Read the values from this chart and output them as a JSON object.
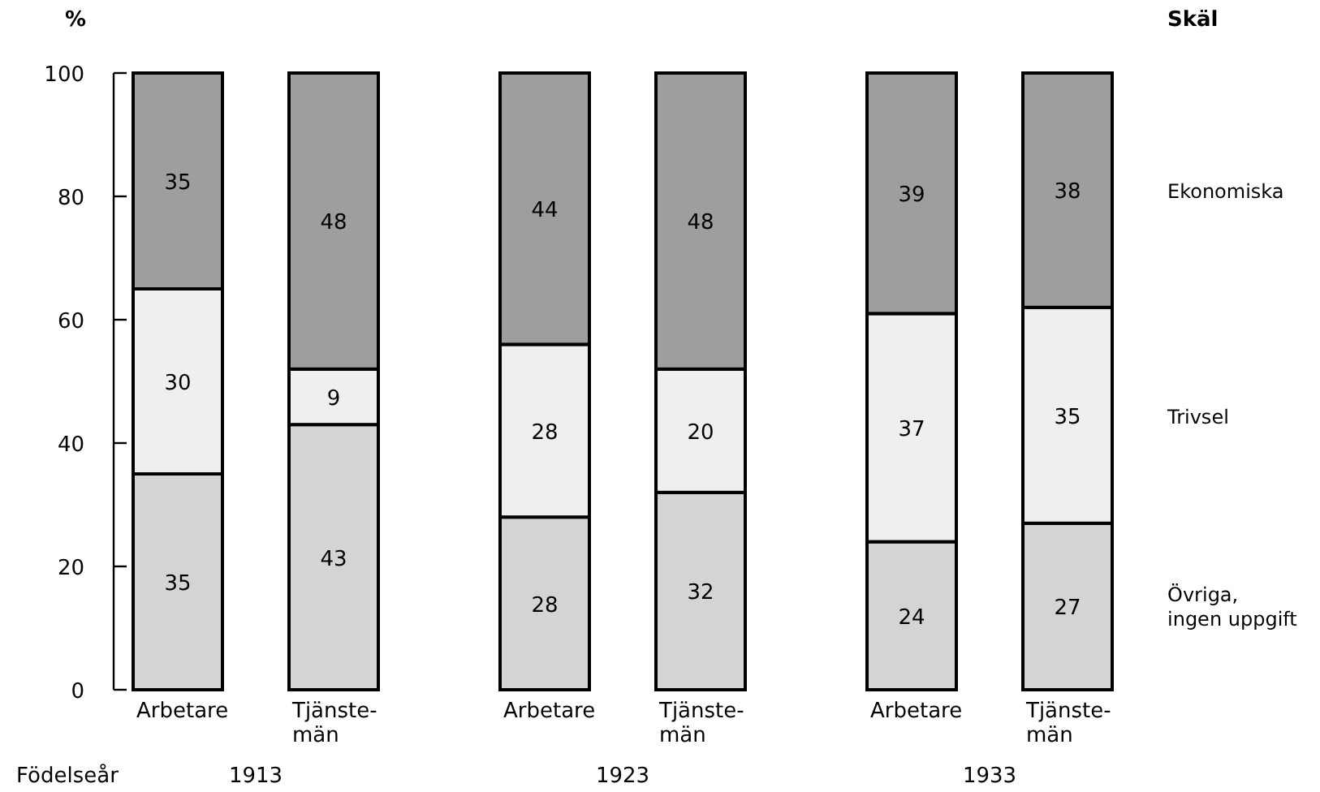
{
  "chart_data": {
    "type": "bar",
    "stacked": true,
    "ylabel": "%",
    "legend_title": "Skäl",
    "legend": "right",
    "data_labels": true,
    "categories": [
      "Arbetare",
      "Tjänste-\nmän",
      "Arbetare",
      "Tjänste-\nmän",
      "Arbetare",
      "Tjänste-\nmän"
    ],
    "series": [
      {
        "name": "Övriga,\ningen uppgift",
        "color": "#d4d4d4",
        "values": [
          35,
          43,
          28,
          32,
          24,
          27
        ]
      },
      {
        "name": "Trivsel",
        "color": "#efefef",
        "values": [
          30,
          9,
          28,
          20,
          37,
          35
        ]
      },
      {
        "name": "Ekonomiska",
        "color": "#9e9e9e",
        "values": [
          35,
          48,
          44,
          48,
          39,
          38
        ]
      }
    ],
    "ylim": [
      0,
      100
    ],
    "yticks": [
      0,
      20,
      40,
      60,
      80,
      100
    ],
    "annotations": [
      "Födelseår",
      "1913",
      "1923",
      "1933"
    ]
  }
}
